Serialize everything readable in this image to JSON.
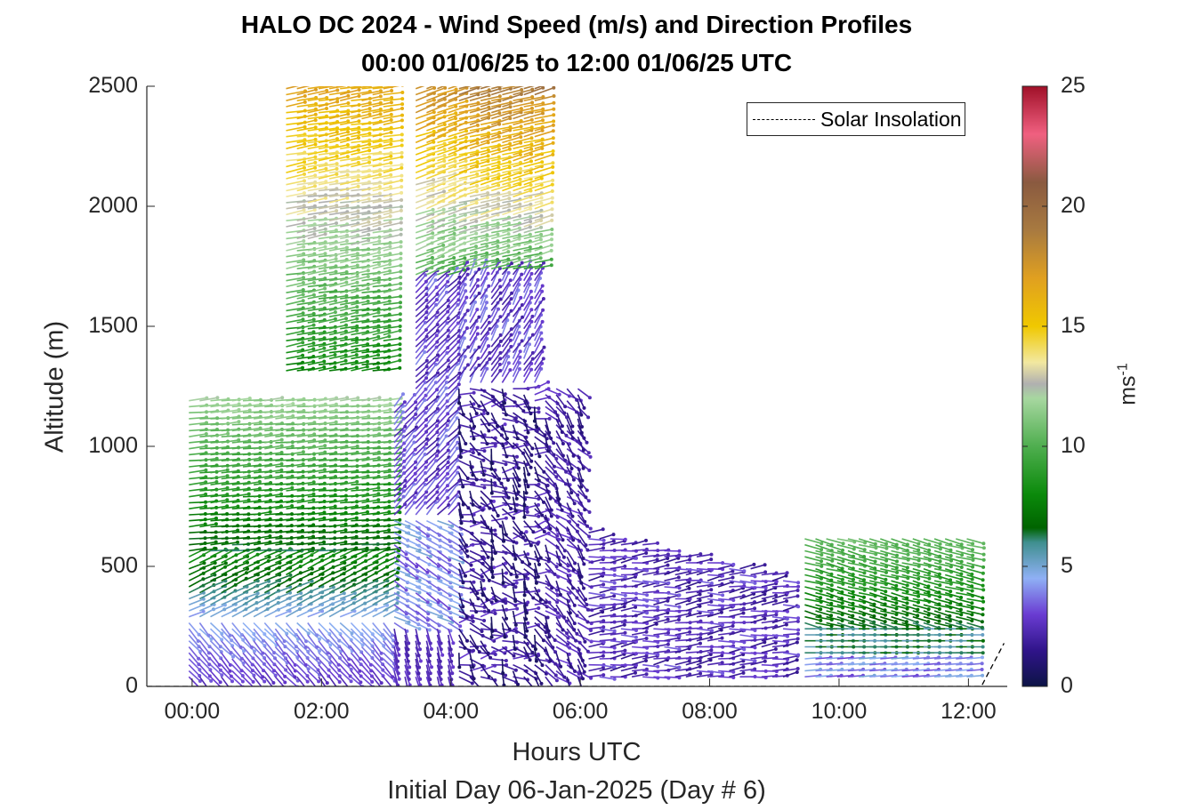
{
  "title_line1": "HALO DC 2024 - Wind Speed (m/s) and Direction Profiles",
  "title_line2": "00:00 01/06/25 to 12:00 01/06/25  UTC",
  "chart_data": {
    "type": "wind-barb profile",
    "xlabel": "Hours UTC",
    "xlabel_sub": "Initial Day 06-Jan-2025 (Day # 6)",
    "ylabel": "Altitude (m)",
    "xlim_hours": [
      -0.7,
      12.6
    ],
    "ylim": [
      0,
      2500
    ],
    "x_ticks": [
      "00:00",
      "02:00",
      "04:00",
      "06:00",
      "08:00",
      "10:00",
      "12:00"
    ],
    "x_tick_hours": [
      0,
      2,
      4,
      6,
      8,
      10,
      12
    ],
    "y_ticks": [
      0,
      500,
      1000,
      1500,
      2000,
      2500
    ],
    "colorbar": {
      "label": "ms",
      "label_exponent": "-1",
      "range": [
        0,
        25
      ],
      "ticks": [
        0,
        5,
        10,
        15,
        20,
        25
      ],
      "stops": [
        {
          "v": 0,
          "color": "#0c1446"
        },
        {
          "v": 1.5,
          "color": "#30148a"
        },
        {
          "v": 3,
          "color": "#6a3cd2"
        },
        {
          "v": 4.5,
          "color": "#8fb0f5"
        },
        {
          "v": 6,
          "color": "#3f8f8f"
        },
        {
          "v": 6.6,
          "color": "#006400"
        },
        {
          "v": 8,
          "color": "#0b8a0b"
        },
        {
          "v": 10,
          "color": "#4fae4f"
        },
        {
          "v": 12,
          "color": "#a7d7a0"
        },
        {
          "v": 12.6,
          "color": "#b0b0b0"
        },
        {
          "v": 13.5,
          "color": "#f2e8a0"
        },
        {
          "v": 15,
          "color": "#f0c800"
        },
        {
          "v": 17,
          "color": "#e0a020"
        },
        {
          "v": 19,
          "color": "#a87a40"
        },
        {
          "v": 21,
          "color": "#8a5a40"
        },
        {
          "v": 23,
          "color": "#f06080"
        },
        {
          "v": 25,
          "color": "#a01028"
        }
      ]
    },
    "legend": {
      "entry": "Solar Insolation",
      "placement": "top-right"
    },
    "solar_insolation": {
      "x_hours": [
        -0.7,
        12.2,
        12.55
      ],
      "y": [
        0,
        0,
        180
      ]
    },
    "wind_profiles_summary": [
      {
        "time_range": "00:00-03:00",
        "alt_range_m": [
          0,
          1180
        ],
        "speed_ms": "2-11",
        "direction": "westerly, strengthening with height"
      },
      {
        "time_range": "01:30-03:00",
        "alt_range_m": [
          1300,
          2500
        ],
        "speed_ms": "8-17",
        "direction": "westerly"
      },
      {
        "time_range": "03:00-04:30",
        "alt_range_m": [
          700,
          1700
        ],
        "speed_ms": "2-6",
        "direction": "northwesterly"
      },
      {
        "time_range": "04:00-05:30",
        "alt_range_m": [
          1700,
          2500
        ],
        "speed_ms": "9-18",
        "direction": "westerly"
      },
      {
        "time_range": "04:00-06:00",
        "alt_range_m": [
          0,
          1250
        ],
        "speed_ms": "0-3",
        "direction": "variable"
      },
      {
        "time_range": "06:00-09:00",
        "alt_range_m": [
          0,
          650
        ],
        "speed_ms": "1-3",
        "direction": "northwesterly"
      },
      {
        "time_range": "09:30-12:00",
        "alt_range_m": [
          0,
          620
        ],
        "speed_ms": "3-10",
        "direction": "westerly"
      }
    ]
  }
}
